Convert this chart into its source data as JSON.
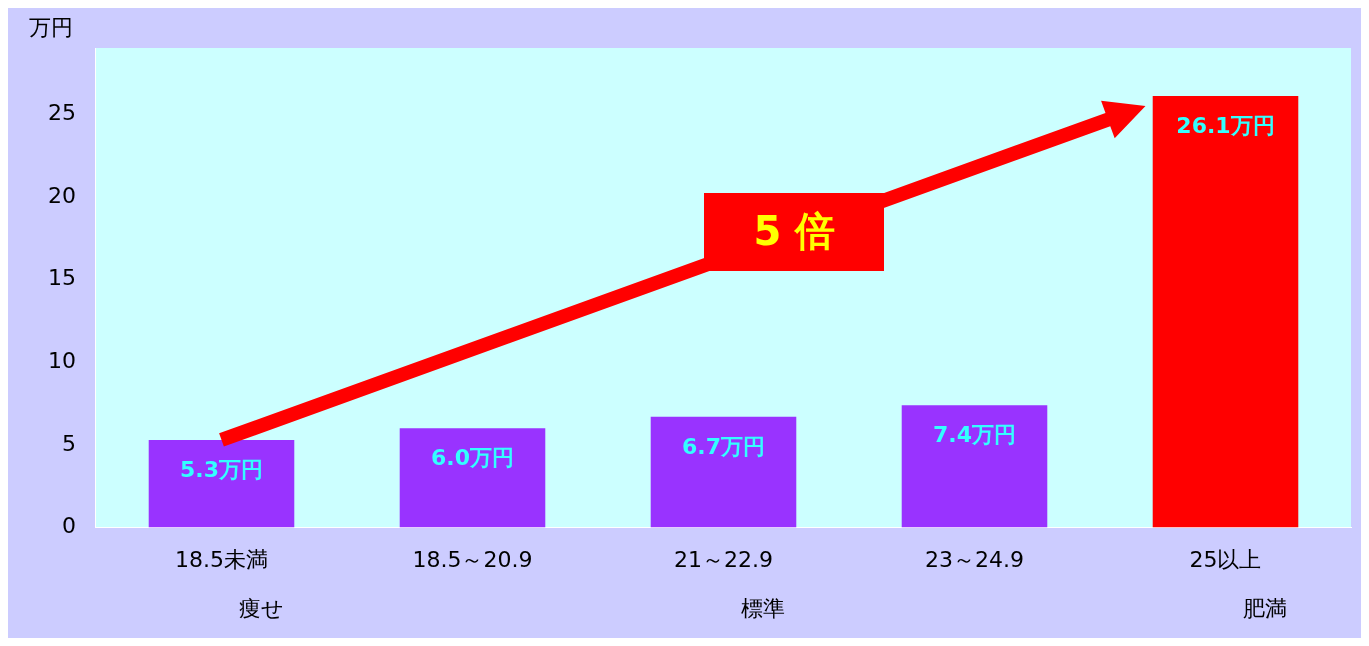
{
  "chart_data": {
    "type": "bar",
    "ylabel": "万円",
    "categories": [
      "18.5未満",
      "18.5～20.9",
      "21～22.9",
      "23～24.9",
      "25以上"
    ],
    "values": [
      5.3,
      6.0,
      6.7,
      7.4,
      26.1
    ],
    "colors": [
      "#9933ff",
      "#9933ff",
      "#9933ff",
      "#9933ff",
      "#ff0000"
    ],
    "value_labels": [
      "5.3万円",
      "6.0万円",
      "6.7万円",
      "7.4万円",
      "26.1万円"
    ],
    "ylim": [
      0,
      29
    ],
    "yticks": [
      0,
      5,
      10,
      15,
      20,
      25
    ],
    "grid": false,
    "legend": false,
    "annotations": [
      "5 倍",
      "痩せ",
      "標準",
      "肥満"
    ]
  }
}
